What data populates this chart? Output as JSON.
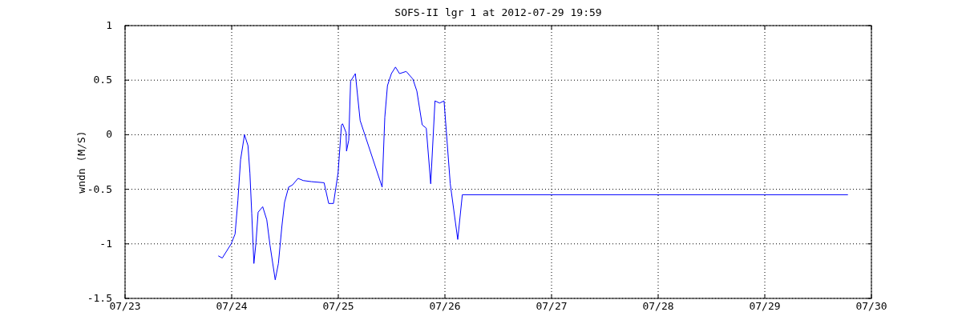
{
  "chart_data": {
    "type": "line",
    "title": "SOFS-II lgr 1 at 2012-07-29 19:59",
    "ylabel": "wndn (M/S)",
    "x": [
      "2012-07-23T20:59",
      "2012-07-23T21:53",
      "2012-07-23T23:53",
      "2012-07-24T00:46",
      "2012-07-24T01:24",
      "2012-07-24T02:00",
      "2012-07-24T02:53",
      "2012-07-24T03:40",
      "2012-07-24T04:06",
      "2012-07-24T04:31",
      "2012-07-24T05:00",
      "2012-07-24T05:28",
      "2012-07-24T05:57",
      "2012-07-24T06:59",
      "2012-07-24T07:54",
      "2012-07-24T08:37",
      "2012-07-24T09:48",
      "2012-07-24T10:31",
      "2012-07-24T11:18",
      "2012-07-24T11:54",
      "2012-07-24T12:49",
      "2012-07-24T13:42",
      "2012-07-24T14:56",
      "2012-07-24T16:06",
      "2012-07-24T17:56",
      "2012-07-24T20:48",
      "2012-07-24T21:50",
      "2012-07-24T22:55",
      "2012-07-24T23:57",
      "2012-07-25T00:43",
      "2012-07-25T00:58",
      "2012-07-25T01:45",
      "2012-07-25T01:51",
      "2012-07-25T02:21",
      "2012-07-25T02:46",
      "2012-07-25T03:50",
      "2012-07-25T04:55",
      "2012-07-25T09:52",
      "2012-07-25T10:28",
      "2012-07-25T11:04",
      "2012-07-25T11:57",
      "2012-07-25T12:52",
      "2012-07-25T13:47",
      "2012-07-25T15:17",
      "2012-07-25T16:47",
      "2012-07-25T17:41",
      "2012-07-25T18:53",
      "2012-07-25T19:48",
      "2012-07-25T20:48",
      "2012-07-25T21:46",
      "2012-07-25T22:48",
      "2012-07-25T23:48",
      "2012-07-26T00:19",
      "2012-07-26T01:12",
      "2012-07-26T02:53",
      "2012-07-26T03:55",
      "2012-07-29T18:43"
    ],
    "series": [
      {
        "color": "#0000ff",
        "values": [
          -1.11,
          -1.13,
          -1.0,
          -0.91,
          -0.6,
          -0.23,
          0.0,
          -0.1,
          -0.35,
          -0.72,
          -1.18,
          -0.99,
          -0.71,
          -0.66,
          -0.78,
          -1.01,
          -1.33,
          -1.18,
          -0.84,
          -0.62,
          -0.48,
          -0.46,
          -0.4,
          -0.42,
          -0.43,
          -0.44,
          -0.63,
          -0.63,
          -0.35,
          0.09,
          0.1,
          0.02,
          -0.15,
          -0.05,
          0.49,
          0.56,
          0.13,
          -0.48,
          0.16,
          0.45,
          0.56,
          0.62,
          0.56,
          0.58,
          0.51,
          0.4,
          0.09,
          0.06,
          -0.45,
          0.31,
          0.29,
          0.31,
          0.03,
          -0.45,
          -0.96,
          -0.55,
          -0.55
        ]
      }
    ],
    "xlim": [
      "2012-07-23",
      "2012-07-30"
    ],
    "xticks": [
      {
        "value": "2012-07-23",
        "label": "07/23"
      },
      {
        "value": "2012-07-24",
        "label": "07/24"
      },
      {
        "value": "2012-07-25",
        "label": "07/25"
      },
      {
        "value": "2012-07-26",
        "label": "07/26"
      },
      {
        "value": "2012-07-27",
        "label": "07/27"
      },
      {
        "value": "2012-07-28",
        "label": "07/28"
      },
      {
        "value": "2012-07-29",
        "label": "07/29"
      },
      {
        "value": "2012-07-30",
        "label": "07/30"
      }
    ],
    "ylim": [
      -1.5,
      1
    ],
    "yticks": [
      -1.5,
      -1,
      -0.5,
      0,
      0.5,
      1
    ],
    "grid": true,
    "line_style": "solid"
  }
}
